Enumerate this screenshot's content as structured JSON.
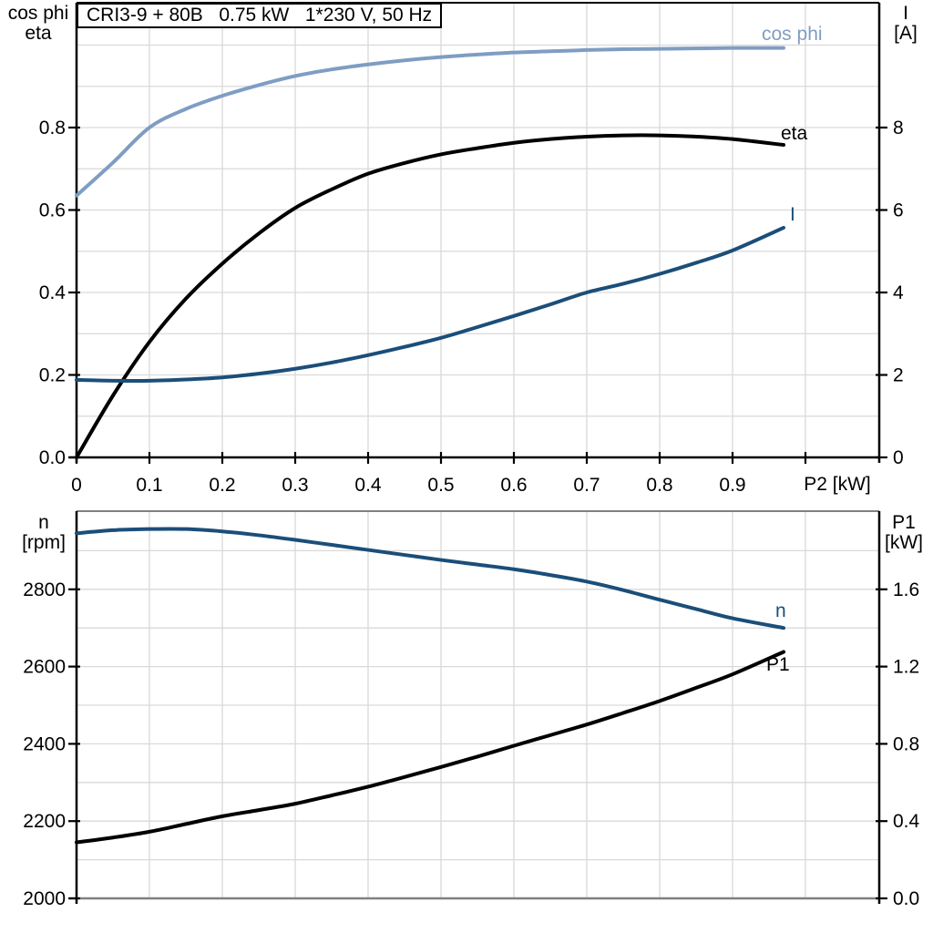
{
  "title_box": {
    "text": "CRI3-9 + 80B   0.75 kW   1*230 V, 50 Hz"
  },
  "colors": {
    "light_blue": "#7f9dc3",
    "dark_blue": "#1b4e79",
    "black": "#000000",
    "grid": "#d9d9d9",
    "frame_gray": "#808080",
    "background": "#ffffff"
  },
  "top_chart": {
    "axis_left_title_1": "cos phi",
    "axis_left_title_2": "eta",
    "axis_right_title_1": "I",
    "axis_right_title_2": "[A]",
    "x_axis_title": "P2 [kW]",
    "curve_labels": {
      "cos_phi": "cos phi",
      "eta": "eta",
      "current": "I"
    }
  },
  "bottom_chart": {
    "axis_left_title_1": "n",
    "axis_left_title_2": "[rpm]",
    "axis_right_title_1": "P1",
    "axis_right_title_2": "[kW]",
    "curve_labels": {
      "n": "n",
      "p1": "P1"
    }
  },
  "chart_data": [
    {
      "type": "line",
      "title": "CRI3-9 + 80B  0.75 kW  1*230 V, 50 Hz",
      "xlabel": "P2 [kW]",
      "grid": true,
      "x_range": [
        0,
        1.1
      ],
      "x_ticks": {
        "values": [
          0,
          0.1,
          0.2,
          0.3,
          0.4,
          0.5,
          0.6,
          0.7,
          0.8,
          0.9,
          1.0
        ],
        "labels": [
          "0",
          "0.1",
          "0.2",
          "0.3",
          "0.4",
          "0.5",
          "0.6",
          "0.7",
          "0.8",
          "0.9",
          ""
        ]
      },
      "left_axis": {
        "title": "cos phi / eta",
        "range": [
          0,
          1.1
        ],
        "ticks": [
          0,
          0.2,
          0.4,
          0.6,
          0.8
        ],
        "tick_labels": [
          "0.0",
          "0.2",
          "0.4",
          "0.6",
          "0.8"
        ]
      },
      "right_axis": {
        "title": "I [A]",
        "range": [
          0,
          11
        ],
        "ticks": [
          0,
          2,
          4,
          6,
          8
        ],
        "tick_labels": [
          "0",
          "2",
          "4",
          "6",
          "8"
        ]
      },
      "series": [
        {
          "name": "cos phi",
          "axis": "left",
          "color": "#7f9dc3",
          "points": [
            [
              0,
              0.635
            ],
            [
              0.05,
              0.715
            ],
            [
              0.1,
              0.8
            ],
            [
              0.15,
              0.845
            ],
            [
              0.2,
              0.877
            ],
            [
              0.25,
              0.903
            ],
            [
              0.3,
              0.925
            ],
            [
              0.35,
              0.941
            ],
            [
              0.4,
              0.953
            ],
            [
              0.45,
              0.963
            ],
            [
              0.5,
              0.971
            ],
            [
              0.55,
              0.977
            ],
            [
              0.6,
              0.982
            ],
            [
              0.65,
              0.985
            ],
            [
              0.7,
              0.988
            ],
            [
              0.75,
              0.99
            ],
            [
              0.8,
              0.991
            ],
            [
              0.85,
              0.992
            ],
            [
              0.9,
              0.993
            ],
            [
              0.97,
              0.993
            ]
          ]
        },
        {
          "name": "eta",
          "axis": "left",
          "color": "#000000",
          "points": [
            [
              0,
              0
            ],
            [
              0.05,
              0.15
            ],
            [
              0.1,
              0.28
            ],
            [
              0.15,
              0.385
            ],
            [
              0.2,
              0.47
            ],
            [
              0.25,
              0.543
            ],
            [
              0.3,
              0.605
            ],
            [
              0.35,
              0.65
            ],
            [
              0.4,
              0.688
            ],
            [
              0.45,
              0.714
            ],
            [
              0.5,
              0.735
            ],
            [
              0.55,
              0.75
            ],
            [
              0.6,
              0.763
            ],
            [
              0.65,
              0.772
            ],
            [
              0.7,
              0.778
            ],
            [
              0.75,
              0.781
            ],
            [
              0.8,
              0.781
            ],
            [
              0.85,
              0.778
            ],
            [
              0.9,
              0.772
            ],
            [
              0.97,
              0.758
            ]
          ]
        },
        {
          "name": "I",
          "axis": "right",
          "color": "#1b4e79",
          "points": [
            [
              0,
              1.88
            ],
            [
              0.05,
              1.86
            ],
            [
              0.1,
              1.86
            ],
            [
              0.15,
              1.89
            ],
            [
              0.2,
              1.94
            ],
            [
              0.25,
              2.03
            ],
            [
              0.3,
              2.15
            ],
            [
              0.35,
              2.3
            ],
            [
              0.4,
              2.48
            ],
            [
              0.45,
              2.68
            ],
            [
              0.5,
              2.9
            ],
            [
              0.55,
              3.16
            ],
            [
              0.6,
              3.43
            ],
            [
              0.65,
              3.71
            ],
            [
              0.7,
              4.0
            ],
            [
              0.75,
              4.21
            ],
            [
              0.8,
              4.45
            ],
            [
              0.85,
              4.72
            ],
            [
              0.9,
              5.02
            ],
            [
              0.97,
              5.57
            ]
          ]
        }
      ]
    },
    {
      "type": "line",
      "title": "",
      "xlabel": "P2 [kW]",
      "grid": true,
      "x_tick_labels_visible": false,
      "x_range": [
        0,
        1.1
      ],
      "x_ticks": {
        "values": [
          0,
          0.1,
          0.2,
          0.3,
          0.4,
          0.5,
          0.6,
          0.7,
          0.8,
          0.9,
          1.0
        ],
        "labels": [
          "",
          "",
          "",
          "",
          "",
          "",
          "",
          "",
          "",
          "",
          ""
        ]
      },
      "left_axis": {
        "title": "n [rpm]",
        "range": [
          2000,
          3000
        ],
        "ticks": [
          2000,
          2200,
          2400,
          2600,
          2800
        ],
        "tick_labels": [
          "2000",
          "2200",
          "2400",
          "2600",
          "2800"
        ]
      },
      "right_axis": {
        "title": "P1 [kW]",
        "range": [
          0,
          2.0
        ],
        "ticks": [
          0,
          0.4,
          0.8,
          1.2,
          1.6
        ],
        "tick_labels": [
          "0.0",
          "0.4",
          "0.8",
          "1.2",
          "1.6"
        ]
      },
      "series": [
        {
          "name": "n",
          "axis": "left",
          "color": "#1b4e79",
          "points": [
            [
              0,
              2945
            ],
            [
              0.05,
              2953
            ],
            [
              0.1,
              2956
            ],
            [
              0.15,
              2956
            ],
            [
              0.2,
              2950
            ],
            [
              0.25,
              2940
            ],
            [
              0.3,
              2928
            ],
            [
              0.35,
              2915
            ],
            [
              0.4,
              2902
            ],
            [
              0.45,
              2889
            ],
            [
              0.5,
              2876
            ],
            [
              0.55,
              2864
            ],
            [
              0.6,
              2852
            ],
            [
              0.65,
              2837
            ],
            [
              0.7,
              2820
            ],
            [
              0.75,
              2798
            ],
            [
              0.8,
              2773
            ],
            [
              0.85,
              2749
            ],
            [
              0.9,
              2725
            ],
            [
              0.97,
              2700
            ]
          ]
        },
        {
          "name": "P1",
          "axis": "right",
          "color": "#000000",
          "points": [
            [
              0,
              0.29
            ],
            [
              0.05,
              0.315
            ],
            [
              0.1,
              0.345
            ],
            [
              0.15,
              0.385
            ],
            [
              0.2,
              0.425
            ],
            [
              0.25,
              0.457
            ],
            [
              0.3,
              0.49
            ],
            [
              0.35,
              0.533
            ],
            [
              0.4,
              0.578
            ],
            [
              0.45,
              0.628
            ],
            [
              0.5,
              0.68
            ],
            [
              0.55,
              0.734
            ],
            [
              0.6,
              0.79
            ],
            [
              0.65,
              0.845
            ],
            [
              0.7,
              0.9
            ],
            [
              0.75,
              0.96
            ],
            [
              0.8,
              1.022
            ],
            [
              0.85,
              1.09
            ],
            [
              0.9,
              1.16
            ],
            [
              0.97,
              1.276
            ]
          ]
        }
      ]
    }
  ]
}
